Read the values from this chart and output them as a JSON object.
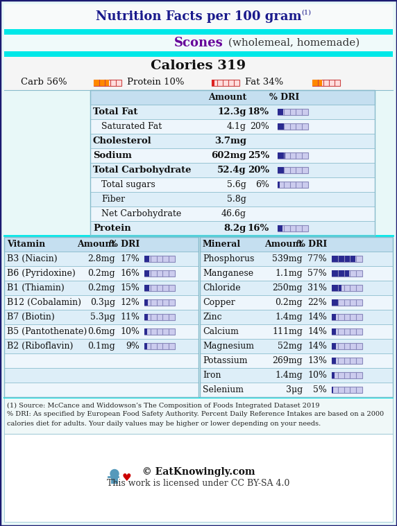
{
  "title": "Nutrition Facts per 100 gram",
  "title_sup": "(1)",
  "food_name": "Scones",
  "food_desc": " (wholemeal, homemade)",
  "calories": "Calories 319",
  "macro_carb_label": "Carb 56%",
  "macro_protein_label": "Protein 10%",
  "macro_fat_label": "Fat 34%",
  "carb_pct": 56,
  "protein_pct": 10,
  "fat_pct": 34,
  "main_nutrients": [
    {
      "name": "Total Fat",
      "amount": "12.3g",
      "dri": "18%",
      "dri_val": 18,
      "bold": true,
      "indent": 0
    },
    {
      "name": "Saturated Fat",
      "amount": "4.1g",
      "dri": "20%",
      "dri_val": 20,
      "bold": false,
      "indent": 1
    },
    {
      "name": "Cholesterol",
      "amount": "3.7mg",
      "dri": "",
      "dri_val": 0,
      "bold": true,
      "indent": 0
    },
    {
      "name": "Sodium",
      "amount": "602mg",
      "dri": "25%",
      "dri_val": 25,
      "bold": true,
      "indent": 0
    },
    {
      "name": "Total Carbohydrate",
      "amount": "52.4g",
      "dri": "20%",
      "dri_val": 20,
      "bold": true,
      "indent": 0
    },
    {
      "name": "Total sugars",
      "amount": "5.6g",
      "dri": "6%",
      "dri_val": 6,
      "bold": false,
      "indent": 1
    },
    {
      "name": "Fiber",
      "amount": "5.8g",
      "dri": "",
      "dri_val": 0,
      "bold": false,
      "indent": 1
    },
    {
      "name": "Net Carbohydrate",
      "amount": "46.6g",
      "dri": "",
      "dri_val": 0,
      "bold": false,
      "indent": 1
    },
    {
      "name": "Protein",
      "amount": "8.2g",
      "dri": "16%",
      "dri_val": 16,
      "bold": true,
      "indent": 0
    }
  ],
  "vitamins": [
    {
      "name": "B3 (Niacin)",
      "amount": "2.8mg",
      "dri": "17%",
      "dri_val": 17
    },
    {
      "name": "B6 (Pyridoxine)",
      "amount": "0.2mg",
      "dri": "16%",
      "dri_val": 16
    },
    {
      "name": "B1 (Thiamin)",
      "amount": "0.2mg",
      "dri": "15%",
      "dri_val": 15
    },
    {
      "name": "B12 (Cobalamin)",
      "amount": "0.3μg",
      "dri": "12%",
      "dri_val": 12
    },
    {
      "name": "B7 (Biotin)",
      "amount": "5.3μg",
      "dri": "11%",
      "dri_val": 11
    },
    {
      "name": "B5 (Pantothenate)",
      "amount": "0.6mg",
      "dri": "10%",
      "dri_val": 10
    },
    {
      "name": "B2 (Riboflavin)",
      "amount": "0.1mg",
      "dri": "9%",
      "dri_val": 9
    }
  ],
  "minerals": [
    {
      "name": "Phosphorus",
      "amount": "539mg",
      "dri": "77%",
      "dri_val": 77
    },
    {
      "name": "Manganese",
      "amount": "1.1mg",
      "dri": "57%",
      "dri_val": 57
    },
    {
      "name": "Chloride",
      "amount": "250mg",
      "dri": "31%",
      "dri_val": 31
    },
    {
      "name": "Copper",
      "amount": "0.2mg",
      "dri": "22%",
      "dri_val": 22
    },
    {
      "name": "Zinc",
      "amount": "1.4mg",
      "dri": "14%",
      "dri_val": 14
    },
    {
      "name": "Calcium",
      "amount": "111mg",
      "dri": "14%",
      "dri_val": 14
    },
    {
      "name": "Magnesium",
      "amount": "52mg",
      "dri": "14%",
      "dri_val": 14
    },
    {
      "name": "Potassium",
      "amount": "269mg",
      "dri": "13%",
      "dri_val": 13
    },
    {
      "name": "Iron",
      "amount": "1.4mg",
      "dri": "10%",
      "dri_val": 10
    },
    {
      "name": "Selenium",
      "amount": "3μg",
      "dri": "5%",
      "dri_val": 5
    }
  ],
  "footnote1": "(1) Source: McCance and Widdowson’s The Composition of Foods Integrated Dataset 2019",
  "footnote2": "% DRI: As specified by European Food Safety Authority. Percent Daily Reference Intakes are based on a 2000",
  "footnote3": "calories diet for adults. Your daily values may be higher or lower depending on your needs.",
  "copyright": "© EatKnowingly.com",
  "license": "This work is licensed under CC BY-SA 4.0",
  "bg_outer": "#e8f8f8",
  "bg_white_section": "#f5f5f5",
  "cyan_color": "#00e8e8",
  "food_row_bg": "#f0fafa",
  "border_dark": "#1a1a70",
  "text_title": "#1a1a8c",
  "text_food": "#660099",
  "text_black": "#111111",
  "tbl_header_bg": "#c5dff0",
  "tbl_row_even": "#ddeef8",
  "tbl_row_odd": "#eef6fc",
  "tbl_border": "#88bbcc",
  "dri_bar_bg": "#ccccee",
  "dri_bar_fill": "#2a2a90",
  "dri_bar_tick": "#8888bb",
  "macro_bar_bg": "#ffdddd",
  "macro_bar_border": "#cc4444",
  "macro_carb_fill": "#ff8800",
  "macro_protein_fill": "#dd2222",
  "macro_fat_fill": "#ff8800",
  "foot_bg": "#f0f8f8",
  "footer_bg": "#ffffff"
}
